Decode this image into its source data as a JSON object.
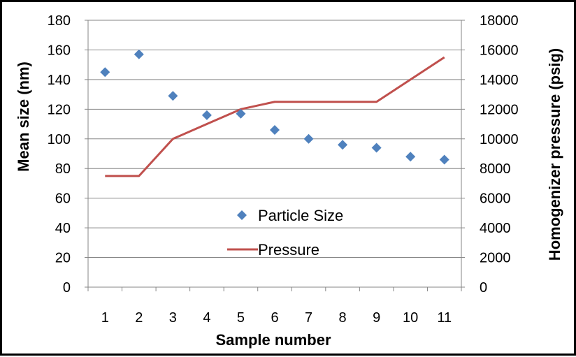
{
  "chart_data": {
    "type": "line",
    "title": "",
    "xlabel": "Sample number",
    "ylabel": "Mean size (nm)",
    "y2label": "Homogenizer pressure (psig)",
    "categories": [
      "1",
      "2",
      "3",
      "4",
      "5",
      "6",
      "7",
      "8",
      "9",
      "10",
      "11"
    ],
    "ylim": [
      0,
      180
    ],
    "y2lim": [
      0,
      18000
    ],
    "y_ticks": [
      "0",
      "20",
      "40",
      "60",
      "80",
      "100",
      "120",
      "140",
      "160",
      "180"
    ],
    "y2_ticks": [
      "0",
      "2000",
      "4000",
      "6000",
      "8000",
      "10000",
      "12000",
      "14000",
      "16000",
      "18000"
    ],
    "grid": "horizontal",
    "legend_position": "center-inside",
    "series": [
      {
        "name": "Particle Size",
        "kind": "scatter",
        "axis": "left",
        "marker": "diamond",
        "color": "#4f81bd",
        "values": [
          145,
          157,
          129,
          116,
          117,
          106,
          100,
          96,
          94,
          88,
          86
        ]
      },
      {
        "name": "Pressure",
        "kind": "line",
        "axis": "right",
        "color": "#c0504d",
        "values": [
          7500,
          7500,
          10000,
          11000,
          12000,
          12500,
          12500,
          12500,
          12500,
          14000,
          15500
        ]
      }
    ]
  }
}
